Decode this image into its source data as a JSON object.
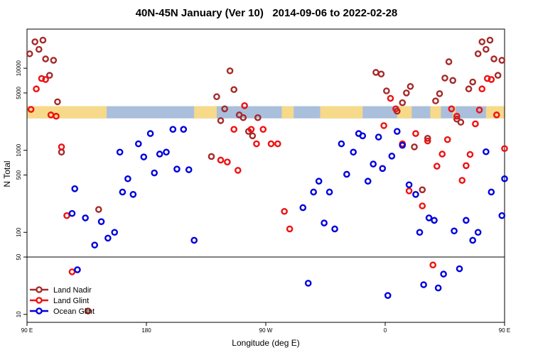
{
  "chart_data": {
    "type": "scatter",
    "title": "40N-45N January (Ver 10)   2014-09-06 to 2022-02-28",
    "xlabel": "Longitude (deg E)",
    "ylabel": "N Total",
    "xlim": [
      90,
      450
    ],
    "x_scale": "longitude, wraps at 180 (90E through 180 to 90E)",
    "y_scale": "log",
    "ylim": [
      8,
      30000
    ],
    "x_ticks": [
      {
        "value": 90,
        "label": "90 E"
      },
      {
        "value": 180,
        "label": "180"
      },
      {
        "value": 270,
        "label": "90 W"
      },
      {
        "value": 360,
        "label": "0"
      },
      {
        "value": 450,
        "label": "90 E"
      },
      {
        "value": 540,
        "label": "180"
      }
    ],
    "y_ticks": [
      {
        "value": 10,
        "label": "10"
      },
      {
        "value": 50,
        "label": "50"
      },
      {
        "value": 100,
        "label": "100"
      },
      {
        "value": 500,
        "label": "500"
      },
      {
        "value": 1000,
        "label": "1000"
      },
      {
        "value": 5000,
        "label": "5000"
      },
      {
        "value": 10000,
        "label": "10000"
      }
    ],
    "reference_line": 50,
    "legend_position": "bottom-left",
    "land_mask_band": {
      "y_range": [
        2450,
        3450
      ],
      "ocean_color": "#a9bfdc",
      "land_color": "#f7d98a",
      "land_segments": [
        [
          90,
          150
        ],
        [
          216,
          233
        ],
        [
          282,
          291
        ],
        [
          311,
          343
        ],
        [
          369,
          380
        ],
        [
          394,
          402
        ],
        [
          411,
          413
        ],
        [
          436,
          476
        ],
        [
          498,
          513
        ],
        [
          572,
          583
        ],
        [
          594,
          601
        ]
      ]
    },
    "series": [
      {
        "name": "Land Nadir",
        "color": "#a52a2a",
        "points": [
          [
            92,
            15000
          ],
          [
            96,
            21000
          ],
          [
            99,
            17000
          ],
          [
            102,
            22000
          ],
          [
            104,
            13000
          ],
          [
            107,
            8200
          ],
          [
            110,
            12500
          ],
          [
            113,
            3900
          ],
          [
            116,
            950
          ],
          [
            144,
            190
          ],
          [
            136,
            11
          ],
          [
            229,
            840
          ],
          [
            233,
            4500
          ],
          [
            236,
            2300
          ],
          [
            239,
            3200
          ],
          [
            243,
            9300
          ],
          [
            246,
            5500
          ],
          [
            250,
            2700
          ],
          [
            253,
            2500
          ],
          [
            257,
            1700
          ],
          [
            260,
            1500
          ],
          [
            264,
            2500
          ],
          [
            353,
            8900
          ],
          [
            357,
            8500
          ],
          [
            361,
            5300
          ],
          [
            369,
            3000
          ],
          [
            373,
            3800
          ],
          [
            376,
            5000
          ],
          [
            379,
            6000
          ],
          [
            382,
            1100
          ],
          [
            388,
            330
          ],
          [
            392,
            1400
          ],
          [
            398,
            4000
          ],
          [
            401,
            4900
          ],
          [
            405,
            7600
          ],
          [
            408,
            12000
          ],
          [
            411,
            7100
          ],
          [
            414,
            2400
          ],
          [
            417,
            2200
          ],
          [
            423,
            5600
          ],
          [
            426,
            6800
          ],
          [
            430,
            15000
          ],
          [
            433,
            21000
          ],
          [
            436,
            17000
          ],
          [
            439,
            22000
          ],
          [
            442,
            13000
          ],
          [
            445,
            8200
          ],
          [
            448,
            12500
          ],
          [
            451,
            3900
          ],
          [
            454,
            950
          ],
          [
            482,
            190
          ],
          [
            474,
            11
          ]
        ]
      },
      {
        "name": "Land Glint",
        "color": "#ee1111",
        "points": [
          [
            93,
            3150
          ],
          [
            97,
            5600
          ],
          [
            101,
            7500
          ],
          [
            104,
            7300
          ],
          [
            108,
            2700
          ],
          [
            112,
            2600
          ],
          [
            116,
            1100
          ],
          [
            120,
            160
          ],
          [
            124,
            33
          ],
          [
            236,
            760
          ],
          [
            241,
            720
          ],
          [
            246,
            1800
          ],
          [
            249,
            570
          ],
          [
            254,
            3500
          ],
          [
            259,
            1800
          ],
          [
            263,
            1200
          ],
          [
            268,
            1800
          ],
          [
            274,
            1200
          ],
          [
            279,
            1200
          ],
          [
            284,
            180
          ],
          [
            288,
            110
          ],
          [
            359,
            2000
          ],
          [
            364,
            4300
          ],
          [
            368,
            3200
          ],
          [
            373,
            1200
          ],
          [
            378,
            320
          ],
          [
            383,
            1600
          ],
          [
            388,
            210
          ],
          [
            392,
            1300
          ],
          [
            396,
            40
          ],
          [
            399,
            640
          ],
          [
            403,
            900
          ],
          [
            407,
            1350
          ],
          [
            410,
            3200
          ],
          [
            414,
            2600
          ],
          [
            418,
            430
          ],
          [
            421,
            650
          ],
          [
            424,
            890
          ],
          [
            428,
            2100
          ],
          [
            431,
            3100
          ],
          [
            433,
            5600
          ],
          [
            437,
            7500
          ],
          [
            440,
            7300
          ],
          [
            444,
            2700
          ],
          [
            450,
            1050
          ],
          [
            454,
            160
          ],
          [
            458,
            33
          ]
        ]
      },
      {
        "name": "Ocean Glint",
        "color": "#0000dd",
        "points": [
          [
            124,
            170
          ],
          [
            126,
            340
          ],
          [
            128,
            35
          ],
          [
            134,
            150
          ],
          [
            141,
            70
          ],
          [
            146,
            135
          ],
          [
            151,
            85
          ],
          [
            156,
            100
          ],
          [
            160,
            950
          ],
          [
            162,
            310
          ],
          [
            166,
            450
          ],
          [
            170,
            290
          ],
          [
            174,
            1200
          ],
          [
            178,
            830
          ],
          [
            183,
            1600
          ],
          [
            186,
            530
          ],
          [
            190,
            900
          ],
          [
            195,
            950
          ],
          [
            200,
            1800
          ],
          [
            203,
            590
          ],
          [
            208,
            1800
          ],
          [
            212,
            580
          ],
          [
            216,
            80
          ],
          [
            298,
            200
          ],
          [
            302,
            24
          ],
          [
            306,
            310
          ],
          [
            310,
            420
          ],
          [
            314,
            130
          ],
          [
            318,
            310
          ],
          [
            322,
            110
          ],
          [
            327,
            1200
          ],
          [
            331,
            510
          ],
          [
            336,
            950
          ],
          [
            340,
            1600
          ],
          [
            343,
            1500
          ],
          [
            347,
            420
          ],
          [
            351,
            680
          ],
          [
            355,
            1450
          ],
          [
            358,
            600
          ],
          [
            362,
            17
          ],
          [
            365,
            850
          ],
          [
            369,
            1700
          ],
          [
            373,
            1150
          ],
          [
            378,
            380
          ],
          [
            383,
            290
          ],
          [
            386,
            100
          ],
          [
            389,
            23
          ],
          [
            393,
            150
          ],
          [
            397,
            140
          ],
          [
            400,
            21
          ],
          [
            404,
            31
          ],
          [
            412,
            104
          ],
          [
            416,
            36
          ],
          [
            421,
            140
          ],
          [
            426,
            80
          ],
          [
            430,
            100
          ],
          [
            436,
            960
          ],
          [
            440,
            310
          ],
          [
            448,
            160
          ],
          [
            450,
            450
          ]
        ]
      }
    ]
  }
}
